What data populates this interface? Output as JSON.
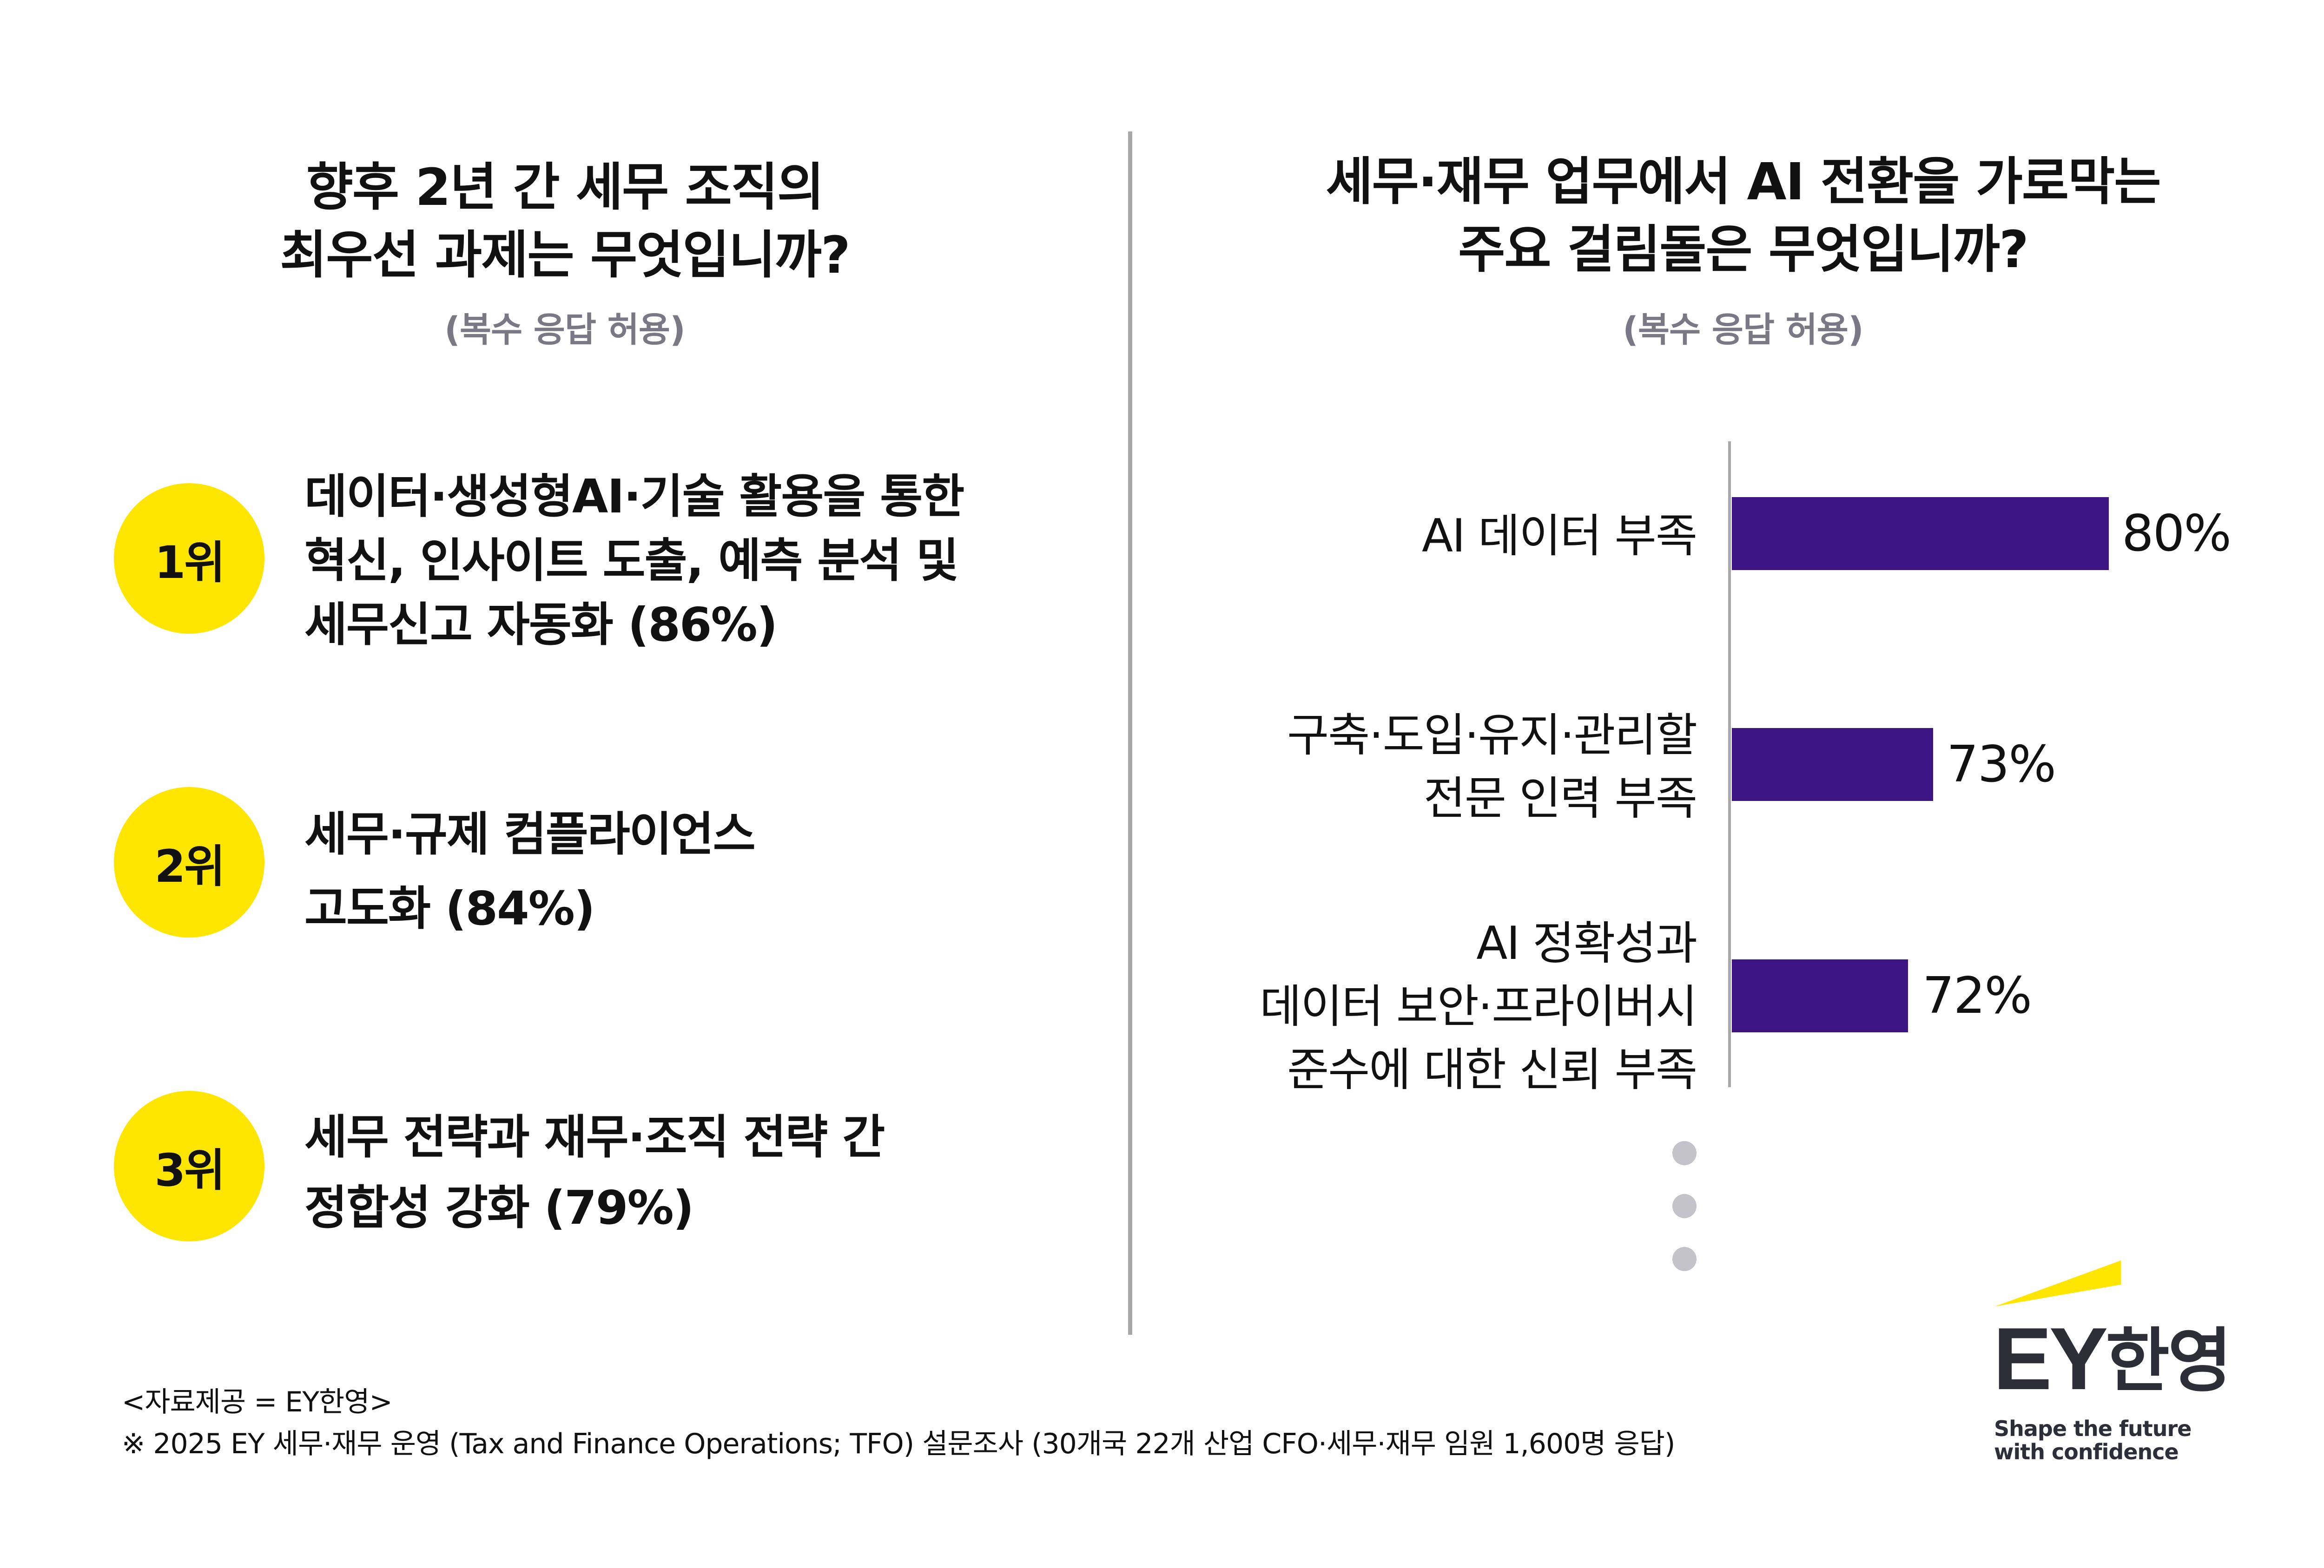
{
  "left_panel": {
    "title_lines": [
      "향후 2년 간 세무 조직의",
      "최우선 과제는 무엇입니까?"
    ],
    "subtitle": "(복수 응답 허용)",
    "items": [
      {
        "rank": "1위",
        "lines": [
          "데이터·생성형AI·기술 활용을 통한",
          "혁신, 인사이트 도출, 예측 분석 및",
          "세무신고 자동화 (86%)"
        ],
        "value": 86
      },
      {
        "rank": "2위",
        "lines": [
          "세무·규제 컴플라이언스",
          "고도화 (84%)"
        ],
        "value": 84
      },
      {
        "rank": "3위",
        "lines": [
          "세무 전략과 재무·조직 전략 간",
          "정합성 강화 (79%)"
        ],
        "value": 79
      }
    ]
  },
  "right_panel": {
    "title_lines": [
      "세무·재무 업무에서 AI 전환을 가로막는",
      "주요 걸림돌은 무엇입니까?"
    ],
    "subtitle": "(복수 응답 허용)",
    "bars": [
      {
        "label_lines": [
          "AI 데이터 부족"
        ],
        "value_label": "80%",
        "value": 80,
        "width_px": "811px"
      },
      {
        "label_lines": [
          "구축·도입·유지·관리할",
          "전문 인력 부족"
        ],
        "value_label": "73%",
        "value": 73,
        "width_px": "433px"
      },
      {
        "label_lines": [
          "AI 정확성과",
          "데이터 보안·프라이버시",
          "준수에 대한 신뢰 부족"
        ],
        "value_label": "72%",
        "value": 72,
        "width_px": "379px"
      }
    ],
    "more_indicator": "more-dots"
  },
  "chart_data": [
    {
      "type": "table",
      "title": "향후 2년 간 세무 조직의 최우선 과제는 무엇입니까? (복수 응답 허용)",
      "categories": [
        "데이터·생성형AI·기술 활용을 통한 혁신, 인사이트 도출, 예측 분석 및 세무신고 자동화",
        "세무·규제 컴플라이언스 고도화",
        "세무 전략과 재무·조직 전략 간 정합성 강화"
      ],
      "ranks": [
        "1위",
        "2위",
        "3위"
      ],
      "values": [
        86,
        84,
        79
      ],
      "unit": "%"
    },
    {
      "type": "bar",
      "orientation": "horizontal",
      "title": "세무·재무 업무에서 AI 전환을 가로막는 주요 걸림돌은 무엇입니까? (복수 응답 허용)",
      "categories": [
        "AI 데이터 부족",
        "구축·도입·유지·관리할 전문 인력 부족",
        "AI 정확성과 데이터 보안·프라이버시 준수에 대한 신뢰 부족"
      ],
      "values": [
        80,
        73,
        72
      ],
      "xlabel": "",
      "ylabel": "",
      "data_labels": [
        "80%",
        "73%",
        "72%"
      ],
      "grid": false,
      "legend": "none",
      "bar_color": "#3D1483"
    }
  ],
  "footer": {
    "source": "<자료제공 = EY한영>",
    "note": "※ 2025 EY 세무·재무 운영 (Tax and Finance Operations; TFO) 설문조사 (30개국 22개 산업 CFO·세무·재무 임원 1,600명 응답)"
  },
  "logo": {
    "brand": "EY",
    "brand_kr": "한영",
    "tagline_lines": [
      "Shape the future",
      "with confidence"
    ]
  },
  "colors": {
    "accent_yellow": "#FFE600",
    "bar_purple": "#3D1483",
    "divider_gray": "#A8A8A8",
    "subtitle_gray": "#7A7884",
    "dot_gray": "#C4C3CB",
    "logo_dark": "#2E2E38"
  }
}
